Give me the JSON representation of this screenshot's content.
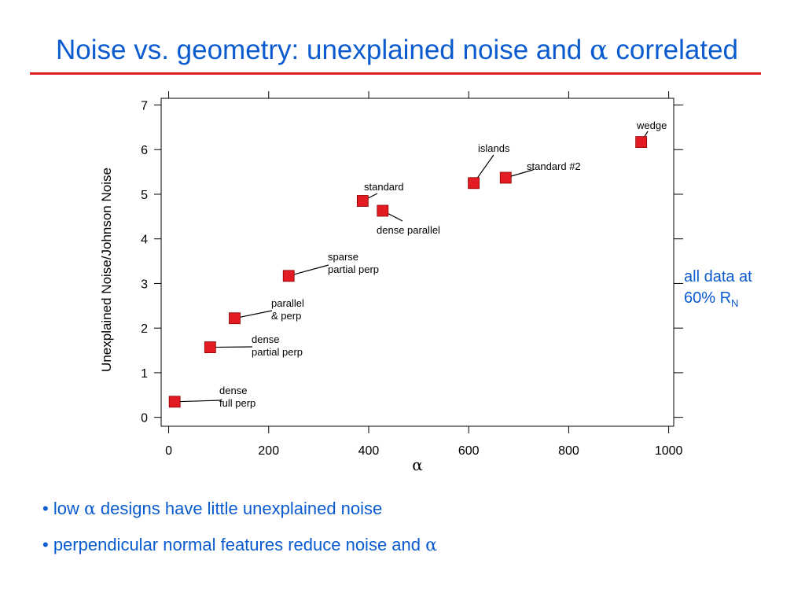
{
  "page": {
    "title_pre": "Noise vs. geometry: unexplained noise and ",
    "title_alpha": "α",
    "title_post": " correlated",
    "note_line1": "all data at",
    "note_line2": "60% R",
    "note_sub": "N",
    "bullet1_pre": "• low ",
    "bullet1_alpha": "α",
    "bullet1_post": " designs have little unexplained noise",
    "bullet2_pre": "• perpendicular normal features reduce noise and ",
    "bullet2_alpha": "α"
  },
  "colors": {
    "title": "#0a5bd0",
    "rule": "#e31b23",
    "marker": "#e31b23",
    "marker_edge": "#8a0000"
  },
  "chart_data": {
    "type": "scatter",
    "xlabel": "α",
    "ylabel": "Unexplained Noise/Johnson Noise",
    "xlim": [
      -15,
      1010
    ],
    "ylim": [
      -0.2,
      7.15
    ],
    "xticks": [
      0,
      200,
      400,
      600,
      800,
      1000
    ],
    "yticks": [
      0,
      1,
      2,
      3,
      4,
      5,
      6,
      7
    ],
    "grid": false,
    "points": [
      {
        "x": 12,
        "y": 0.35,
        "label": [
          "dense",
          "full perp"
        ]
      },
      {
        "x": 83,
        "y": 1.57,
        "label": [
          "dense",
          "partial perp"
        ]
      },
      {
        "x": 132,
        "y": 2.22,
        "label": [
          "parallel",
          "& perp"
        ]
      },
      {
        "x": 240,
        "y": 3.17,
        "label": [
          "sparse",
          "partial perp"
        ]
      },
      {
        "x": 388,
        "y": 4.85,
        "label": [
          "standard"
        ]
      },
      {
        "x": 428,
        "y": 4.63,
        "label": [
          "dense parallel"
        ]
      },
      {
        "x": 610,
        "y": 5.25,
        "label": [
          "islands"
        ]
      },
      {
        "x": 674,
        "y": 5.37,
        "label": [
          "standard #2"
        ]
      },
      {
        "x": 945,
        "y": 6.17,
        "label": [
          "wedge"
        ]
      }
    ]
  }
}
